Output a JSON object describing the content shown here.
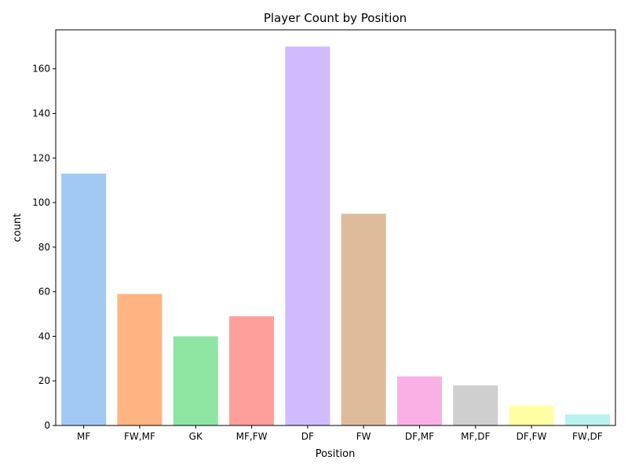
{
  "chart_data": {
    "type": "bar",
    "title": "Player Count by Position",
    "xlabel": "Position",
    "ylabel": "count",
    "categories": [
      "MF",
      "FW,MF",
      "GK",
      "MF,FW",
      "DF",
      "FW",
      "DF,MF",
      "MF,DF",
      "DF,FW",
      "FW,DF"
    ],
    "values": [
      113,
      59,
      40,
      49,
      170,
      95,
      22,
      18,
      9,
      5
    ],
    "colors": [
      "#a1c9f4",
      "#ffb482",
      "#8de5a1",
      "#ff9f9b",
      "#d0bbff",
      "#debb9b",
      "#fab0e4",
      "#cfcfcf",
      "#fffea3",
      "#b9f2f0"
    ],
    "ylim": [
      0,
      177.5
    ],
    "yticks": [
      0,
      20,
      40,
      60,
      80,
      100,
      120,
      140,
      160
    ],
    "grid": false,
    "legend": "none"
  }
}
